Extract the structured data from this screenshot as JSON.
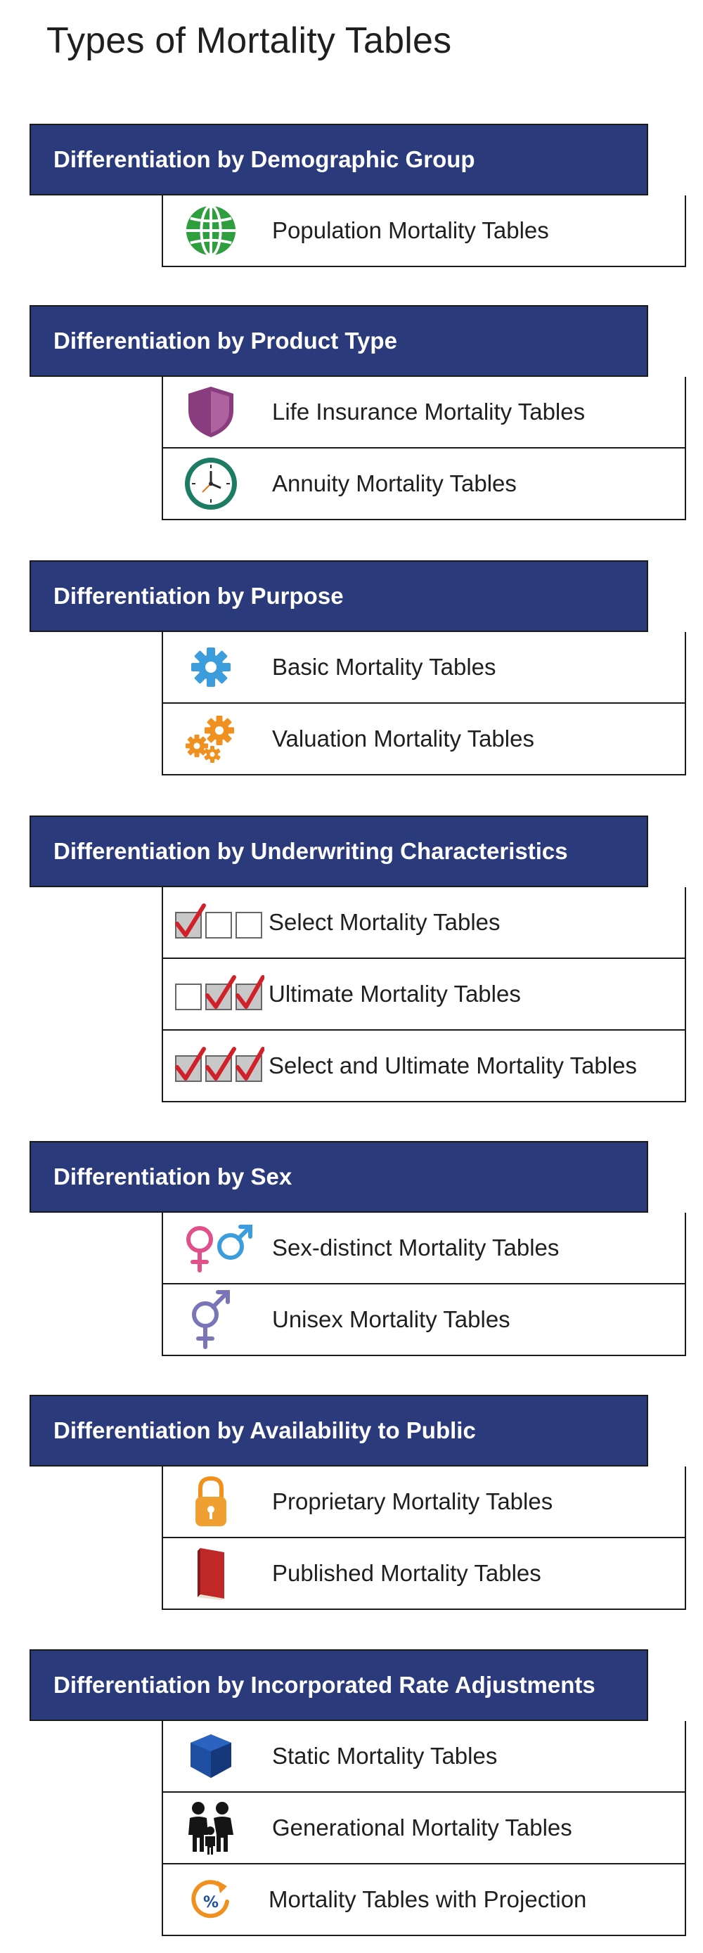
{
  "title": "Types of Mortality Tables",
  "sections": [
    {
      "heading": "Differentiation by Demographic Group",
      "items": [
        {
          "label": "Population Mortality Tables",
          "icon": "globe-icon"
        }
      ]
    },
    {
      "heading": "Differentiation by Product Type",
      "items": [
        {
          "label": "Life Insurance Mortality Tables",
          "icon": "shield-icon"
        },
        {
          "label": "Annuity Mortality Tables",
          "icon": "clock-icon"
        }
      ]
    },
    {
      "heading": "Differentiation by Purpose",
      "items": [
        {
          "label": "Basic Mortality Tables",
          "icon": "gear-icon"
        },
        {
          "label": "Valuation Mortality Tables",
          "icon": "gears-icon"
        }
      ]
    },
    {
      "heading": "Differentiation by Underwriting Characteristics",
      "items": [
        {
          "label": "Select Mortality Tables",
          "icon": "checkbox-first-checked-icon"
        },
        {
          "label": "Ultimate Mortality Tables",
          "icon": "checkbox-last-two-checked-icon"
        },
        {
          "label": "Select and Ultimate Mortality Tables",
          "icon": "checkbox-all-checked-icon"
        }
      ]
    },
    {
      "heading": "Differentiation by Sex",
      "items": [
        {
          "label": "Sex-distinct Mortality Tables",
          "icon": "female-male-symbols-icon"
        },
        {
          "label": "Unisex Mortality Tables",
          "icon": "unisex-symbol-icon"
        }
      ]
    },
    {
      "heading": "Differentiation by Availability to Public",
      "items": [
        {
          "label": "Proprietary Mortality Tables",
          "icon": "padlock-icon"
        },
        {
          "label": "Published Mortality Tables",
          "icon": "book-icon"
        }
      ]
    },
    {
      "heading": "Differentiation by Incorporated Rate Adjustments",
      "items": [
        {
          "label": "Static Mortality Tables",
          "icon": "cube-icon"
        },
        {
          "label": "Generational Mortality Tables",
          "icon": "family-icon"
        },
        {
          "label": "Mortality Tables with Projection",
          "icon": "percent-arrow-icon"
        }
      ]
    }
  ],
  "colors": {
    "header_bg": "#2a3a7a",
    "header_text": "#ffffff",
    "border": "#1b1b1b",
    "check_red": "#d0202a"
  }
}
